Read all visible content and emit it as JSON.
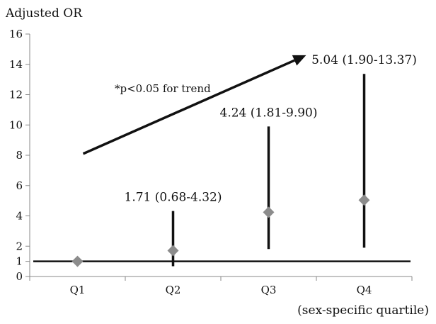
{
  "chart_data": {
    "type": "scatter",
    "ylabel": "Adjusted OR",
    "xlabel": "(sex-specific quartile)",
    "categories": [
      "Q1",
      "Q2",
      "Q3",
      "Q4"
    ],
    "ylim": [
      0,
      16
    ],
    "yticks": [
      0,
      1,
      2,
      4,
      6,
      8,
      10,
      12,
      14,
      16
    ],
    "grid": false,
    "reference_line": 1,
    "series": [
      {
        "values": [
          1,
          1.71,
          4.24,
          5.04
        ],
        "ci_low": [
          null,
          0.68,
          1.81,
          1.9
        ],
        "ci_high": [
          null,
          4.32,
          9.9,
          13.37
        ],
        "marker": "diamond",
        "marker_color": "#8c8c8c"
      }
    ],
    "data_labels": [
      "",
      "1.71 (0.68-4.32)",
      "4.24 (1.81-9.90)",
      "5.04 (1.90-13.37)"
    ],
    "annotation": "*p<0.05 for trend",
    "trend_arrow": {
      "from_category": "Q1",
      "from_value": 8.1,
      "to_category": "Q4",
      "to_value": 14.6
    }
  }
}
